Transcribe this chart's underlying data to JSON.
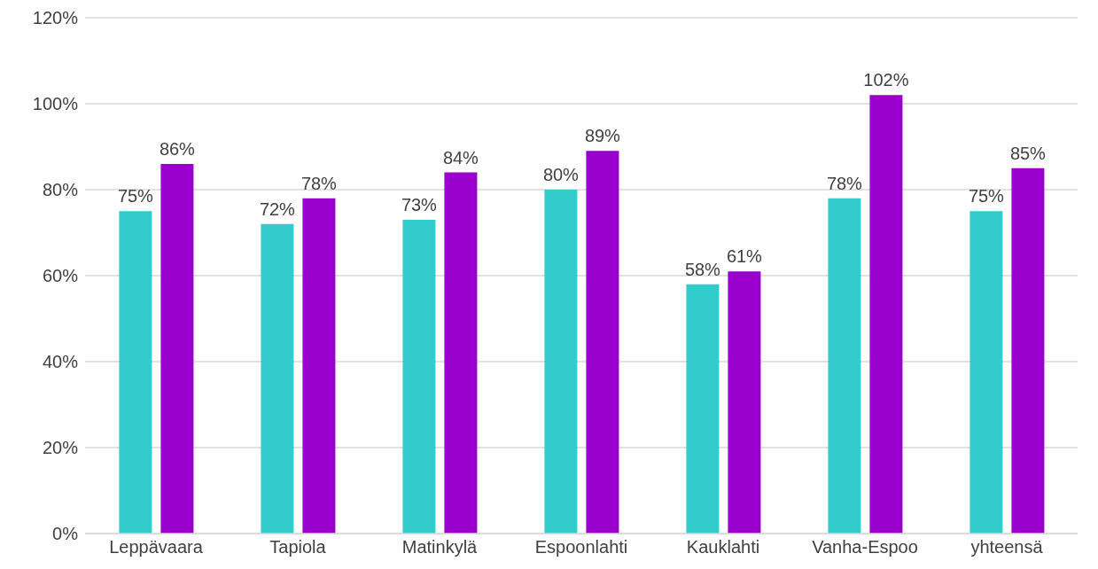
{
  "chart_data": {
    "type": "bar",
    "categories": [
      "Leppävaara",
      "Tapiola",
      "Matinkylä",
      "Espoonlahti",
      "Kauklahti",
      "Vanha-Espoo",
      "yhteensä"
    ],
    "series": [
      {
        "color": "#33cccc",
        "values": [
          75,
          72,
          73,
          80,
          58,
          78,
          75
        ],
        "value_labels": [
          "75%",
          "72%",
          "73%",
          "80%",
          "58%",
          "78%",
          "75%"
        ]
      },
      {
        "color": "#9900cc",
        "values": [
          86,
          78,
          84,
          89,
          61,
          102,
          85
        ],
        "value_labels": [
          "86%",
          "78%",
          "84%",
          "89%",
          "61%",
          "102%",
          "85%"
        ]
      }
    ],
    "ylim": [
      0,
      120
    ],
    "yticks": [
      {
        "value": 0,
        "label": "0%"
      },
      {
        "value": 20,
        "label": "20%"
      },
      {
        "value": 40,
        "label": "40%"
      },
      {
        "value": 60,
        "label": "60%"
      },
      {
        "value": 80,
        "label": "80%"
      },
      {
        "value": 100,
        "label": "100%"
      },
      {
        "value": 120,
        "label": "120%"
      }
    ],
    "grid": "y",
    "legend": false
  }
}
